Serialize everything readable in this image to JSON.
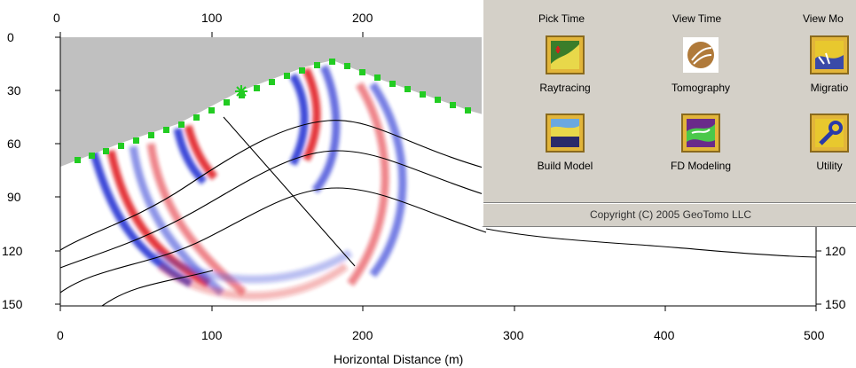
{
  "plot": {
    "xlabel": "Horizontal Distance (m)",
    "x_bottom_ticks": [
      "0",
      "100",
      "200",
      "300",
      "400",
      "500"
    ],
    "x_top_ticks": [
      "0",
      "100",
      "200"
    ],
    "y_ticks": [
      "0",
      "30",
      "60",
      "90",
      "120",
      "150"
    ],
    "y_right_ticks": [
      "120",
      "150"
    ],
    "colors": {
      "air": "#c0c0c0",
      "positive": "#e0191c",
      "negative": "#1f2bd1",
      "receiver": "#22cc22",
      "source": "#22cc22"
    }
  },
  "panel": {
    "top_labels": [
      "Pick Time",
      "View Time",
      "View Mo"
    ],
    "tools": [
      {
        "label": "Raytracing",
        "icon": "raytracing-icon"
      },
      {
        "label": "Tomography",
        "icon": "tomography-icon"
      },
      {
        "label": "Migratio",
        "icon": "migration-icon"
      },
      {
        "label": "Build Model",
        "icon": "build-model-icon"
      },
      {
        "label": "FD Modeling",
        "icon": "fd-modeling-icon"
      },
      {
        "label": "Utility",
        "icon": "utility-icon"
      }
    ],
    "copyright": "Copyright (C) 2005 GeoTomo LLC"
  }
}
